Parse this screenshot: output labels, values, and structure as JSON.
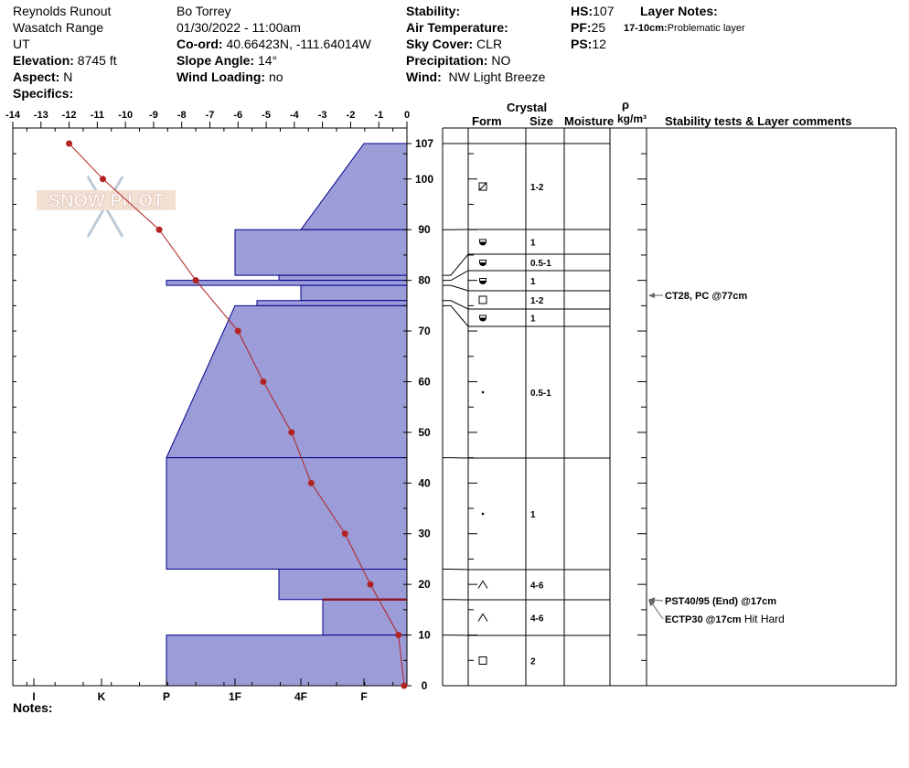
{
  "header": {
    "location": "Reynolds Runout",
    "range": "Wasatch Range",
    "state": "UT",
    "elevation_label": "Elevation:",
    "elevation": "8745 ft",
    "aspect_label": "Aspect:",
    "aspect": "N",
    "specifics_label": "Specifics:",
    "observer": "Bo Torrey",
    "datetime": "01/30/2022 - 11:00am",
    "coord_label": "Co-ord:",
    "coord": "40.66423N, -111.64014W",
    "slope_label": "Slope Angle:",
    "slope": "14°",
    "wind_loading_label": "Wind Loading:",
    "wind_loading": "no",
    "stability_label": "Stability:",
    "air_temp_label": "Air Temperature:",
    "sky_label": "Sky Cover:",
    "sky": "CLR",
    "precip_label": "Precipitation:",
    "precip": "NO",
    "wind_label": "Wind:",
    "wind": "NW Light Breeze",
    "hs_label": "HS:",
    "hs": "107",
    "pf_label": "PF:",
    "pf": "25",
    "ps_label": "PS:",
    "ps": "12",
    "layer_notes_label": "Layer Notes:",
    "layer_note_range": "17-10cm:",
    "layer_note_text": "Problematic layer",
    "notes_label": "Notes:"
  },
  "logo_text": "SNOW PILOT",
  "table_headers": {
    "crystal": "Crystal",
    "form": "Form",
    "size": "Size",
    "moisture": "Moisture",
    "rho": "ρ",
    "density_unit": "kg/m³",
    "comments": "Stability tests & Layer comments"
  },
  "colors": {
    "layer_fill": "#9c9cd8",
    "layer_edge": "#00008b",
    "temp_line": "#b22222",
    "weak_layer": "#8b1a2a"
  },
  "chart_data": {
    "type": "snow-profile",
    "temperature_axis": {
      "ticks": [
        "-14",
        "-13",
        "-12",
        "-11",
        "-10",
        "-9",
        "-8",
        "-7",
        "-6",
        "-5",
        "-4",
        "-3",
        "-2",
        "-1",
        "0"
      ],
      "range": [
        -14,
        0
      ]
    },
    "hardness_axis": {
      "ticks": [
        "I",
        "K",
        "P",
        "1F",
        "4F",
        "F"
      ]
    },
    "depth_axis": {
      "ticks": [
        "107",
        "100",
        "90",
        "80",
        "70",
        "60",
        "50",
        "40",
        "30",
        "20",
        "10",
        "0"
      ],
      "range": [
        0,
        107
      ]
    },
    "temperature_profile": [
      {
        "depth": 107,
        "temp": -12.0
      },
      {
        "depth": 100,
        "temp": -10.8
      },
      {
        "depth": 90,
        "temp": -8.8
      },
      {
        "depth": 80,
        "temp": -7.5
      },
      {
        "depth": 70,
        "temp": -6.0
      },
      {
        "depth": 60,
        "temp": -5.1
      },
      {
        "depth": 50,
        "temp": -4.1
      },
      {
        "depth": 40,
        "temp": -3.4
      },
      {
        "depth": 30,
        "temp": -2.2
      },
      {
        "depth": 20,
        "temp": -1.3
      },
      {
        "depth": 10,
        "temp": -0.3
      },
      {
        "depth": 0,
        "temp": -0.1
      }
    ],
    "layers": [
      {
        "top": 107,
        "bottom": 90,
        "hardness_top": "F",
        "hardness_bottom": "4F",
        "form": "mixed-forms",
        "size": "1-2"
      },
      {
        "top": 90,
        "bottom": 81,
        "hardness_top": "1F",
        "hardness_bottom": "1F",
        "form": "rounding-facets",
        "size": "1"
      },
      {
        "top": 81,
        "bottom": 80,
        "hardness_top": "4F+",
        "hardness_bottom": "4F+",
        "form": "rounding-facets",
        "size": "0.5-1"
      },
      {
        "top": 80,
        "bottom": 79,
        "hardness_top": "P",
        "hardness_bottom": "P",
        "form": "rounding-facets",
        "size": "1"
      },
      {
        "top": 79,
        "bottom": 76,
        "hardness_top": "4F",
        "hardness_bottom": "4F",
        "form": "faceted",
        "size": "1-2"
      },
      {
        "top": 76,
        "bottom": 75,
        "hardness_top": "1F-",
        "hardness_bottom": "1F-",
        "form": "rounding-facets",
        "size": "1"
      },
      {
        "top": 75,
        "bottom": 45,
        "hardness_top": "1F",
        "hardness_bottom": "P",
        "form": "rounded",
        "size": "0.5-1"
      },
      {
        "top": 45,
        "bottom": 23,
        "hardness_top": "P",
        "hardness_bottom": "P",
        "form": "rounded",
        "size": "1"
      },
      {
        "top": 23,
        "bottom": 17,
        "hardness_top": "4F+",
        "hardness_bottom": "4F+",
        "form": "depth-hoar",
        "size": "4-6"
      },
      {
        "top": 17,
        "bottom": 10,
        "hardness_top": "4F-",
        "hardness_bottom": "4F-",
        "form": "depth-hoar",
        "size": "4-6"
      },
      {
        "top": 10,
        "bottom": 0,
        "hardness_top": "P",
        "hardness_bottom": "P",
        "form": "faceted",
        "size": "2"
      }
    ],
    "weak_layer_depth": 17,
    "tests": [
      {
        "depth": 77,
        "text": "CT28, PC @77cm",
        "extra": ""
      },
      {
        "depth": 17,
        "text": "PST40/95 (End) @17cm",
        "extra": ""
      },
      {
        "depth": 17,
        "text": "ECTP30 @17cm",
        "extra": "Hit Hard"
      }
    ]
  }
}
